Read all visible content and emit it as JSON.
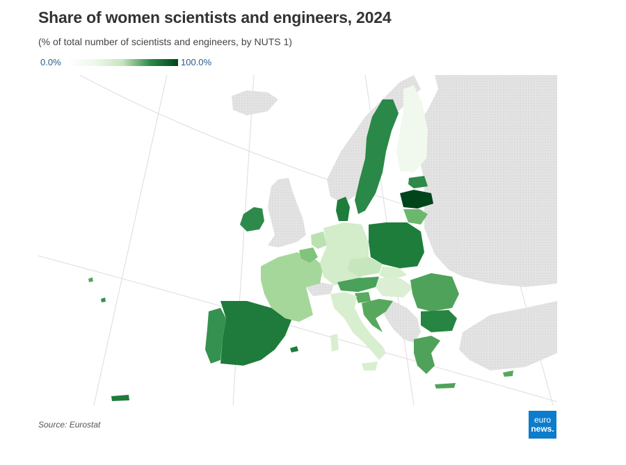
{
  "header": {
    "title": "Share of women scientists and engineers, 2024",
    "subtitle": "(% of total number of scientists and engineers, by NUTS 1)"
  },
  "legend": {
    "min_label": "0.0%",
    "max_label": "100.0%"
  },
  "footer": {
    "source": "Source: Eurostat",
    "logo_line1": "euro",
    "logo_line2": "news."
  },
  "colors": {
    "no_data": "#e3e3e3",
    "scale_low": "#ffffff",
    "scale_high": "#00441b",
    "logo_bg": "#0c7ccc"
  },
  "map_regions": [
    {
      "name": "Latvia",
      "shade": "darkest"
    },
    {
      "name": "Spain",
      "shade": "dark"
    },
    {
      "name": "Portugal",
      "shade": "dark"
    },
    {
      "name": "Sweden",
      "shade": "dark"
    },
    {
      "name": "Poland",
      "shade": "dark"
    },
    {
      "name": "Denmark",
      "shade": "dark"
    },
    {
      "name": "Ireland",
      "shade": "dark"
    },
    {
      "name": "Estonia",
      "shade": "dark"
    },
    {
      "name": "Bulgaria",
      "shade": "dark"
    },
    {
      "name": "Romania",
      "shade": "medium"
    },
    {
      "name": "Lithuania",
      "shade": "medium"
    },
    {
      "name": "Croatia",
      "shade": "medium"
    },
    {
      "name": "Greece",
      "shade": "medium"
    },
    {
      "name": "Cyprus",
      "shade": "medium"
    },
    {
      "name": "Slovenia",
      "shade": "medium"
    },
    {
      "name": "Austria",
      "shade": "medium"
    },
    {
      "name": "France",
      "shade": "light"
    },
    {
      "name": "Netherlands",
      "shade": "light"
    },
    {
      "name": "Belgium",
      "shade": "medium"
    },
    {
      "name": "Germany",
      "shade": "lighter"
    },
    {
      "name": "Italy",
      "shade": "lighter"
    },
    {
      "name": "Czechia",
      "shade": "lighter"
    },
    {
      "name": "Slovakia",
      "shade": "lighter"
    },
    {
      "name": "Hungary",
      "shade": "lighter"
    },
    {
      "name": "Finland",
      "shade": "lightest"
    }
  ]
}
